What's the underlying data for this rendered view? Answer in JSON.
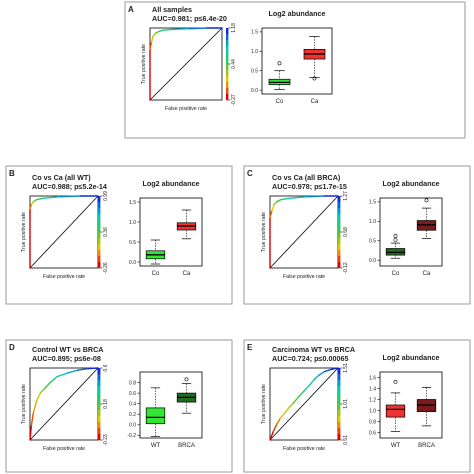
{
  "chart_data": [
    {
      "letter": "A",
      "type": "roc+boxplot",
      "title": "All samples",
      "auc_label": "AUC=0.981; p≤6.4e-20",
      "roc": {
        "xlabel": "False positive rate",
        "ylabel": "True positive rate",
        "points": [
          [
            0,
            0
          ],
          [
            0,
            0.7
          ],
          [
            0.02,
            0.8
          ],
          [
            0.04,
            0.88
          ],
          [
            0.08,
            0.93
          ],
          [
            0.12,
            0.95
          ],
          [
            0.18,
            0.97
          ],
          [
            0.3,
            0.98
          ],
          [
            0.55,
            0.99
          ],
          [
            0.8,
            1.0
          ],
          [
            1,
            1
          ]
        ],
        "colorbar_ticks": [
          "1.18",
          "0.44",
          "-0.27"
        ]
      },
      "box": {
        "title": "Log2 abundance",
        "ylim": [
          -0.1,
          1.6
        ],
        "yticks": [
          "0.0",
          "0.5",
          "1.0",
          "1.5"
        ],
        "groups": [
          {
            "name": "Co",
            "color": "#33e633",
            "stats": [
              0.02,
              0.14,
              0.2,
              0.28,
              0.5
            ],
            "outliers": [
              0.69
            ]
          },
          {
            "name": "Ca",
            "color": "#ee3333",
            "stats": [
              0.32,
              0.8,
              0.93,
              1.05,
              1.38
            ],
            "outliers": [
              0.3
            ]
          }
        ]
      }
    },
    {
      "letter": "B",
      "type": "roc+boxplot",
      "title": "Co vs Ca (all WT)",
      "auc_label": "AUC=0.988; p≤5.2e-14",
      "roc": {
        "xlabel": "False positive rate",
        "ylabel": "True positive rate",
        "points": [
          [
            0,
            0
          ],
          [
            0,
            0.82
          ],
          [
            0.02,
            0.88
          ],
          [
            0.05,
            0.92
          ],
          [
            0.1,
            0.95
          ],
          [
            0.2,
            0.97
          ],
          [
            0.45,
            0.99
          ],
          [
            0.75,
            1.0
          ],
          [
            1,
            1
          ]
        ],
        "colorbar_ticks": [
          "0.99",
          "0.36",
          "-0.26"
        ]
      },
      "box": {
        "title": "Log2 abundance",
        "ylim": [
          -0.1,
          1.6
        ],
        "yticks": [
          "0.0",
          "0.5",
          "1.0",
          "1.5"
        ],
        "groups": [
          {
            "name": "Co",
            "color": "#33e633",
            "stats": [
              -0.05,
              0.08,
              0.18,
              0.28,
              0.55
            ],
            "outliers": []
          },
          {
            "name": "Ca",
            "color": "#ee3333",
            "stats": [
              0.58,
              0.8,
              0.9,
              0.98,
              1.3
            ],
            "outliers": []
          }
        ]
      }
    },
    {
      "letter": "C",
      "type": "roc+boxplot",
      "title": "Co vs Ca (all BRCA)",
      "auc_label": "AUC=0.978; p≤1.7e-15",
      "roc": {
        "xlabel": "False positive rate",
        "ylabel": "True positive rate",
        "points": [
          [
            0,
            0
          ],
          [
            0,
            0.7
          ],
          [
            0.03,
            0.8
          ],
          [
            0.06,
            0.88
          ],
          [
            0.1,
            0.92
          ],
          [
            0.16,
            0.95
          ],
          [
            0.3,
            0.97
          ],
          [
            0.55,
            0.99
          ],
          [
            0.8,
            1.0
          ],
          [
            1,
            1
          ]
        ],
        "colorbar_ticks": [
          "1.27",
          "0.58",
          "-0.12"
        ]
      },
      "box": {
        "title": "Log2 abundance",
        "ylim": [
          -0.15,
          1.6
        ],
        "yticks": [
          "0.0",
          "0.5",
          "1.0",
          "1.5"
        ],
        "groups": [
          {
            "name": "Co",
            "color": "#1f6b1f",
            "stats": [
              0.05,
              0.13,
              0.2,
              0.3,
              0.44
            ],
            "outliers": [
              0.52,
              0.62
            ]
          },
          {
            "name": "Ca",
            "color": "#7a1a1a",
            "stats": [
              0.56,
              0.77,
              0.91,
              1.02,
              1.34
            ],
            "outliers": [
              1.54
            ]
          }
        ]
      }
    },
    {
      "letter": "D",
      "type": "roc+boxplot",
      "title": "Control WT vs BRCA",
      "auc_label": "AUC=0.895; p≤6e-08",
      "roc": {
        "xlabel": "False positive rate",
        "ylabel": "True positive rate",
        "points": [
          [
            0,
            0
          ],
          [
            0.02,
            0.2
          ],
          [
            0.05,
            0.38
          ],
          [
            0.1,
            0.55
          ],
          [
            0.15,
            0.65
          ],
          [
            0.22,
            0.72
          ],
          [
            0.3,
            0.8
          ],
          [
            0.4,
            0.88
          ],
          [
            0.55,
            0.93
          ],
          [
            0.7,
            0.97
          ],
          [
            0.85,
            0.99
          ],
          [
            1,
            1
          ]
        ],
        "colorbar_ticks": [
          "0.6",
          "0.18",
          "-0.23"
        ]
      },
      "box": {
        "title": "",
        "ylim": [
          -0.25,
          1.0
        ],
        "yticks": [
          "-0.2",
          "0.0",
          "0.2",
          "0.4",
          "0.6",
          "0.8"
        ],
        "groups": [
          {
            "name": "WT",
            "color": "#33e633",
            "stats": [
              -0.22,
              0.02,
              0.14,
              0.32,
              0.7
            ],
            "outliers": []
          },
          {
            "name": "BRCA",
            "color": "#1f6b1f",
            "stats": [
              0.22,
              0.43,
              0.52,
              0.6,
              0.78
            ],
            "outliers": [
              0.86
            ]
          }
        ]
      }
    },
    {
      "letter": "E",
      "type": "roc+boxplot",
      "title": "Carcinoma WT vs BRCA",
      "auc_label": "AUC=0.724; p≤0.00065",
      "roc": {
        "xlabel": "False positive rate",
        "ylabel": "True positive rate",
        "points": [
          [
            0,
            0
          ],
          [
            0.05,
            0.12
          ],
          [
            0.1,
            0.22
          ],
          [
            0.15,
            0.3
          ],
          [
            0.22,
            0.38
          ],
          [
            0.28,
            0.45
          ],
          [
            0.35,
            0.52
          ],
          [
            0.42,
            0.6
          ],
          [
            0.5,
            0.68
          ],
          [
            0.58,
            0.76
          ],
          [
            0.65,
            0.84
          ],
          [
            0.72,
            0.9
          ],
          [
            0.8,
            0.95
          ],
          [
            0.9,
            0.98
          ],
          [
            1,
            1
          ]
        ],
        "colorbar_ticks": [
          "1.51",
          "1.01",
          "0.51"
        ]
      },
      "box": {
        "title": "Log2 abundance",
        "ylim": [
          0.5,
          1.7
        ],
        "yticks": [
          "0.6",
          "0.8",
          "1.0",
          "1.2",
          "1.4",
          "1.6"
        ],
        "groups": [
          {
            "name": "WT",
            "color": "#ee3333",
            "stats": [
              0.62,
              0.88,
              1.02,
              1.1,
              1.32
            ],
            "outliers": [
              1.52
            ]
          },
          {
            "name": "BRCA",
            "color": "#7a1a1a",
            "stats": [
              0.72,
              0.98,
              1.1,
              1.2,
              1.42
            ],
            "outliers": []
          }
        ]
      }
    }
  ]
}
